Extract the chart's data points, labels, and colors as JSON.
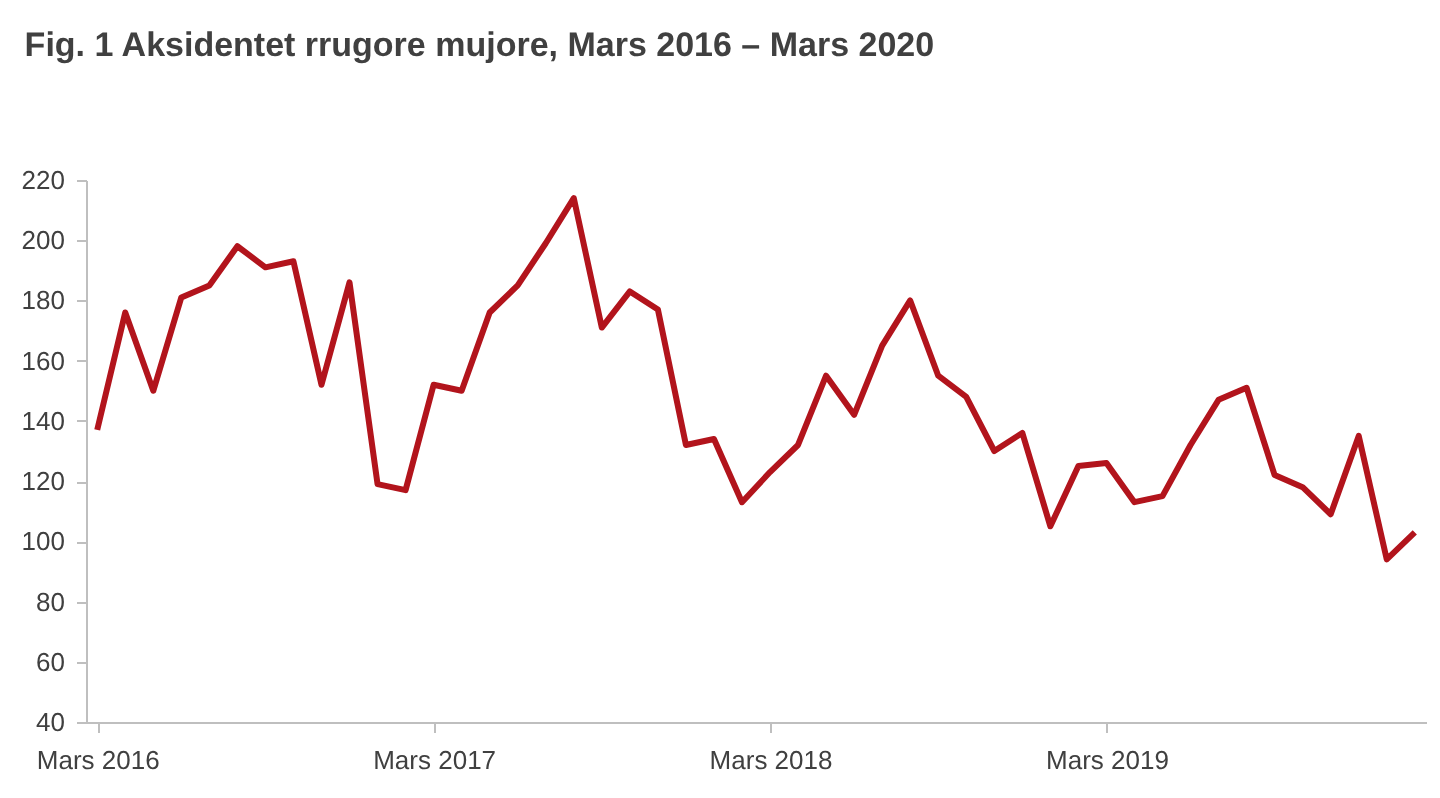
{
  "chart_data": {
    "type": "line",
    "title": "Fig. 1 Aksidentet rrugore mujore, Mars 2016 – Mars 2020",
    "categories": [
      "Mars 2016",
      null,
      null,
      null,
      null,
      null,
      null,
      null,
      null,
      null,
      null,
      null,
      "Mars 2017",
      null,
      null,
      null,
      null,
      null,
      null,
      null,
      null,
      null,
      null,
      null,
      "Mars 2018",
      null,
      null,
      null,
      null,
      null,
      null,
      null,
      null,
      null,
      null,
      null,
      "Mars 2019",
      null,
      null,
      null,
      null,
      null,
      null,
      null,
      null,
      null,
      null,
      null
    ],
    "series": [
      {
        "color": "#b2141c",
        "values": [
          137,
          176,
          150,
          181,
          185,
          198,
          191,
          193,
          152,
          186,
          119,
          117,
          152,
          150,
          176,
          185,
          199,
          214,
          171,
          183,
          177,
          132,
          134,
          113,
          123,
          132,
          155,
          142,
          165,
          180,
          155,
          148,
          130,
          136,
          105,
          125,
          126,
          113,
          115,
          132,
          147,
          151,
          122,
          118,
          109,
          135,
          94,
          103
        ]
      }
    ],
    "ylim": [
      40,
      220
    ],
    "yticks": [
      40,
      60,
      80,
      100,
      120,
      140,
      160,
      180,
      200,
      220
    ],
    "grid": false,
    "legend": false,
    "marker": "none",
    "line_style": "solid"
  }
}
